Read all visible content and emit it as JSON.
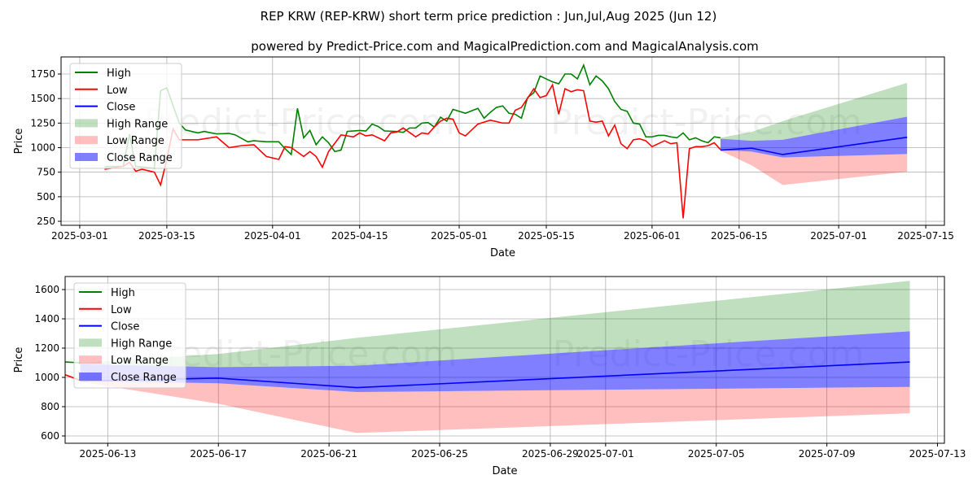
{
  "title": "REP KRW (REP-KRW) short term price prediction : Jun,Jul,Aug 2025 (Jun 12)",
  "subtitle": "powered by Predict-Price.com and MagicalPrediction.com and MagicalAnalysis.com",
  "watermark": "Predict-Price.com",
  "colors": {
    "high": "#008000",
    "low": "#ff0000",
    "close": "#0000ff",
    "high_range": "rgba(0,128,0,0.25)",
    "low_range": "rgba(255,0,0,0.25)",
    "close_range": "rgba(0,0,255,0.5)"
  },
  "legend": [
    "High",
    "Low",
    "Close",
    "High Range",
    "Low Range",
    "Close Range"
  ],
  "chart_data": [
    {
      "type": "line",
      "xlabel": "Date",
      "ylabel": "Price",
      "xlim": [
        "2025-02-26",
        "2025-07-18"
      ],
      "ylim": [
        209,
        1924
      ],
      "xticks": [
        "2025-03-01",
        "2025-03-15",
        "2025-04-01",
        "2025-04-15",
        "2025-05-01",
        "2025-05-15",
        "2025-06-01",
        "2025-06-15",
        "2025-07-01",
        "2025-07-15"
      ],
      "yticks": [
        250,
        500,
        750,
        1000,
        1250,
        1500,
        1750
      ],
      "legend_position": "top-left",
      "grid": true
    },
    {
      "type": "line",
      "xlabel": "Date",
      "ylabel": "Price",
      "xlim": [
        "2025-06-11T11:00Z",
        "2025-07-13T06:00Z"
      ],
      "ylim": [
        550,
        1689
      ],
      "xticks": [
        "2025-06-13",
        "2025-06-17",
        "2025-06-21",
        "2025-06-25",
        "2025-06-29",
        "2025-07-01",
        "2025-07-05",
        "2025-07-09",
        "2025-07-13"
      ],
      "yticks": [
        600,
        800,
        1000,
        1200,
        1400,
        1600
      ],
      "legend_position": "top-left",
      "grid": true
    }
  ],
  "series": {
    "high": [
      [
        "2025-03-05",
        805
      ],
      [
        "2025-03-08",
        810
      ],
      [
        "2025-03-09",
        1137
      ],
      [
        "2025-03-10",
        810
      ],
      [
        "2025-03-13",
        790
      ],
      [
        "2025-03-14",
        1580
      ],
      [
        "2025-03-15",
        1610
      ],
      [
        "2025-03-17",
        1250
      ],
      [
        "2025-03-18",
        1180
      ],
      [
        "2025-03-20",
        1150
      ],
      [
        "2025-03-21",
        1165
      ],
      [
        "2025-03-23",
        1140
      ],
      [
        "2025-03-25",
        1145
      ],
      [
        "2025-03-26",
        1130
      ],
      [
        "2025-03-28",
        1060
      ],
      [
        "2025-03-29",
        1070
      ],
      [
        "2025-03-31",
        1060
      ],
      [
        "2025-04-02",
        1060
      ],
      [
        "2025-04-03",
        990
      ],
      [
        "2025-04-04",
        930
      ],
      [
        "2025-04-05",
        1400
      ],
      [
        "2025-04-06",
        1100
      ],
      [
        "2025-04-07",
        1175
      ],
      [
        "2025-04-08",
        1030
      ],
      [
        "2025-04-09",
        1110
      ],
      [
        "2025-04-10",
        1050
      ],
      [
        "2025-04-11",
        960
      ],
      [
        "2025-04-12",
        975
      ],
      [
        "2025-04-13",
        1165
      ],
      [
        "2025-04-15",
        1175
      ],
      [
        "2025-04-16",
        1170
      ],
      [
        "2025-04-17",
        1240
      ],
      [
        "2025-04-18",
        1215
      ],
      [
        "2025-04-19",
        1170
      ],
      [
        "2025-04-21",
        1165
      ],
      [
        "2025-04-22",
        1155
      ],
      [
        "2025-04-23",
        1200
      ],
      [
        "2025-04-24",
        1200
      ],
      [
        "2025-04-25",
        1250
      ],
      [
        "2025-04-26",
        1255
      ],
      [
        "2025-04-27",
        1210
      ],
      [
        "2025-04-28",
        1310
      ],
      [
        "2025-04-29",
        1270
      ],
      [
        "2025-04-30",
        1390
      ],
      [
        "2025-05-01",
        1370
      ],
      [
        "2025-05-02",
        1350
      ],
      [
        "2025-05-04",
        1400
      ],
      [
        "2025-05-05",
        1300
      ],
      [
        "2025-05-06",
        1360
      ],
      [
        "2025-05-07",
        1410
      ],
      [
        "2025-05-08",
        1425
      ],
      [
        "2025-05-09",
        1350
      ],
      [
        "2025-05-10",
        1340
      ],
      [
        "2025-05-11",
        1300
      ],
      [
        "2025-05-12",
        1510
      ],
      [
        "2025-05-13",
        1560
      ],
      [
        "2025-05-14",
        1730
      ],
      [
        "2025-05-15",
        1700
      ],
      [
        "2025-05-16",
        1670
      ],
      [
        "2025-05-17",
        1650
      ],
      [
        "2025-05-18",
        1750
      ],
      [
        "2025-05-19",
        1750
      ],
      [
        "2025-05-20",
        1700
      ],
      [
        "2025-05-21",
        1840
      ],
      [
        "2025-05-22",
        1640
      ],
      [
        "2025-05-23",
        1730
      ],
      [
        "2025-05-24",
        1680
      ],
      [
        "2025-05-25",
        1600
      ],
      [
        "2025-05-26",
        1470
      ],
      [
        "2025-05-27",
        1390
      ],
      [
        "2025-05-28",
        1370
      ],
      [
        "2025-05-29",
        1250
      ],
      [
        "2025-05-30",
        1240
      ],
      [
        "2025-05-31",
        1110
      ],
      [
        "2025-06-01",
        1110
      ],
      [
        "2025-06-02",
        1125
      ],
      [
        "2025-06-03",
        1125
      ],
      [
        "2025-06-04",
        1110
      ],
      [
        "2025-06-05",
        1100
      ],
      [
        "2025-06-06",
        1150
      ],
      [
        "2025-06-07",
        1080
      ],
      [
        "2025-06-08",
        1100
      ],
      [
        "2025-06-09",
        1070
      ],
      [
        "2025-06-10",
        1050
      ],
      [
        "2025-06-11",
        1110
      ],
      [
        "2025-06-12",
        1100
      ]
    ],
    "low": [
      [
        "2025-03-05",
        780
      ],
      [
        "2025-03-08",
        810
      ],
      [
        "2025-03-09",
        850
      ],
      [
        "2025-03-10",
        760
      ],
      [
        "2025-03-11",
        780
      ],
      [
        "2025-03-13",
        750
      ],
      [
        "2025-03-14",
        620
      ],
      [
        "2025-03-15",
        880
      ],
      [
        "2025-03-16",
        1190
      ],
      [
        "2025-03-17",
        1080
      ],
      [
        "2025-03-20",
        1080
      ],
      [
        "2025-03-23",
        1110
      ],
      [
        "2025-03-25",
        1000
      ],
      [
        "2025-03-27",
        1020
      ],
      [
        "2025-03-29",
        1030
      ],
      [
        "2025-03-31",
        910
      ],
      [
        "2025-04-02",
        880
      ],
      [
        "2025-04-03",
        1010
      ],
      [
        "2025-04-04",
        1000
      ],
      [
        "2025-04-06",
        910
      ],
      [
        "2025-04-07",
        960
      ],
      [
        "2025-04-08",
        910
      ],
      [
        "2025-04-09",
        800
      ],
      [
        "2025-04-10",
        960
      ],
      [
        "2025-04-12",
        1130
      ],
      [
        "2025-04-14",
        1110
      ],
      [
        "2025-04-15",
        1150
      ],
      [
        "2025-04-16",
        1120
      ],
      [
        "2025-04-17",
        1130
      ],
      [
        "2025-04-19",
        1070
      ],
      [
        "2025-04-20",
        1150
      ],
      [
        "2025-04-21",
        1160
      ],
      [
        "2025-04-22",
        1200
      ],
      [
        "2025-04-24",
        1110
      ],
      [
        "2025-04-25",
        1150
      ],
      [
        "2025-04-26",
        1140
      ],
      [
        "2025-04-27",
        1210
      ],
      [
        "2025-04-28",
        1270
      ],
      [
        "2025-04-29",
        1300
      ],
      [
        "2025-04-30",
        1290
      ],
      [
        "2025-05-01",
        1150
      ],
      [
        "2025-05-02",
        1120
      ],
      [
        "2025-05-04",
        1240
      ],
      [
        "2025-05-06",
        1280
      ],
      [
        "2025-05-08",
        1250
      ],
      [
        "2025-05-09",
        1250
      ],
      [
        "2025-05-10",
        1380
      ],
      [
        "2025-05-11",
        1410
      ],
      [
        "2025-05-13",
        1600
      ],
      [
        "2025-05-14",
        1510
      ],
      [
        "2025-05-15",
        1530
      ],
      [
        "2025-05-16",
        1640
      ],
      [
        "2025-05-17",
        1340
      ],
      [
        "2025-05-18",
        1600
      ],
      [
        "2025-05-19",
        1570
      ],
      [
        "2025-05-20",
        1590
      ],
      [
        "2025-05-21",
        1580
      ],
      [
        "2025-05-22",
        1270
      ],
      [
        "2025-05-23",
        1260
      ],
      [
        "2025-05-24",
        1270
      ],
      [
        "2025-05-25",
        1120
      ],
      [
        "2025-05-26",
        1230
      ],
      [
        "2025-05-27",
        1040
      ],
      [
        "2025-05-28",
        990
      ],
      [
        "2025-05-29",
        1080
      ],
      [
        "2025-05-30",
        1090
      ],
      [
        "2025-05-31",
        1070
      ],
      [
        "2025-06-01",
        1010
      ],
      [
        "2025-06-02",
        1040
      ],
      [
        "2025-06-03",
        1070
      ],
      [
        "2025-06-04",
        1040
      ],
      [
        "2025-06-05",
        1050
      ],
      [
        "2025-06-06",
        280
      ],
      [
        "2025-06-07",
        990
      ],
      [
        "2025-06-08",
        1010
      ],
      [
        "2025-06-09",
        1010
      ],
      [
        "2025-06-10",
        1020
      ],
      [
        "2025-06-11",
        1050
      ],
      [
        "2025-06-12",
        980
      ]
    ],
    "close_forecast": [
      [
        "2025-06-12",
        975
      ],
      [
        "2025-06-17",
        995
      ],
      [
        "2025-06-22",
        930
      ],
      [
        "2025-07-12",
        1105
      ]
    ],
    "high_range": {
      "dates": [
        "2025-06-12",
        "2025-06-17",
        "2025-06-22",
        "2025-07-12"
      ],
      "upper": [
        1100,
        1160,
        1270,
        1660
      ],
      "lower": [
        1090,
        1070,
        1080,
        1315
      ]
    },
    "close_range": {
      "dates": [
        "2025-06-12",
        "2025-06-17",
        "2025-06-22",
        "2025-07-12"
      ],
      "upper": [
        1090,
        1070,
        1080,
        1315
      ],
      "lower": [
        975,
        960,
        900,
        935
      ]
    },
    "low_range": {
      "dates": [
        "2025-06-12",
        "2025-06-17",
        "2025-06-22",
        "2025-07-12"
      ],
      "upper": [
        975,
        960,
        900,
        935
      ],
      "lower": [
        970,
        820,
        620,
        755
      ]
    }
  }
}
